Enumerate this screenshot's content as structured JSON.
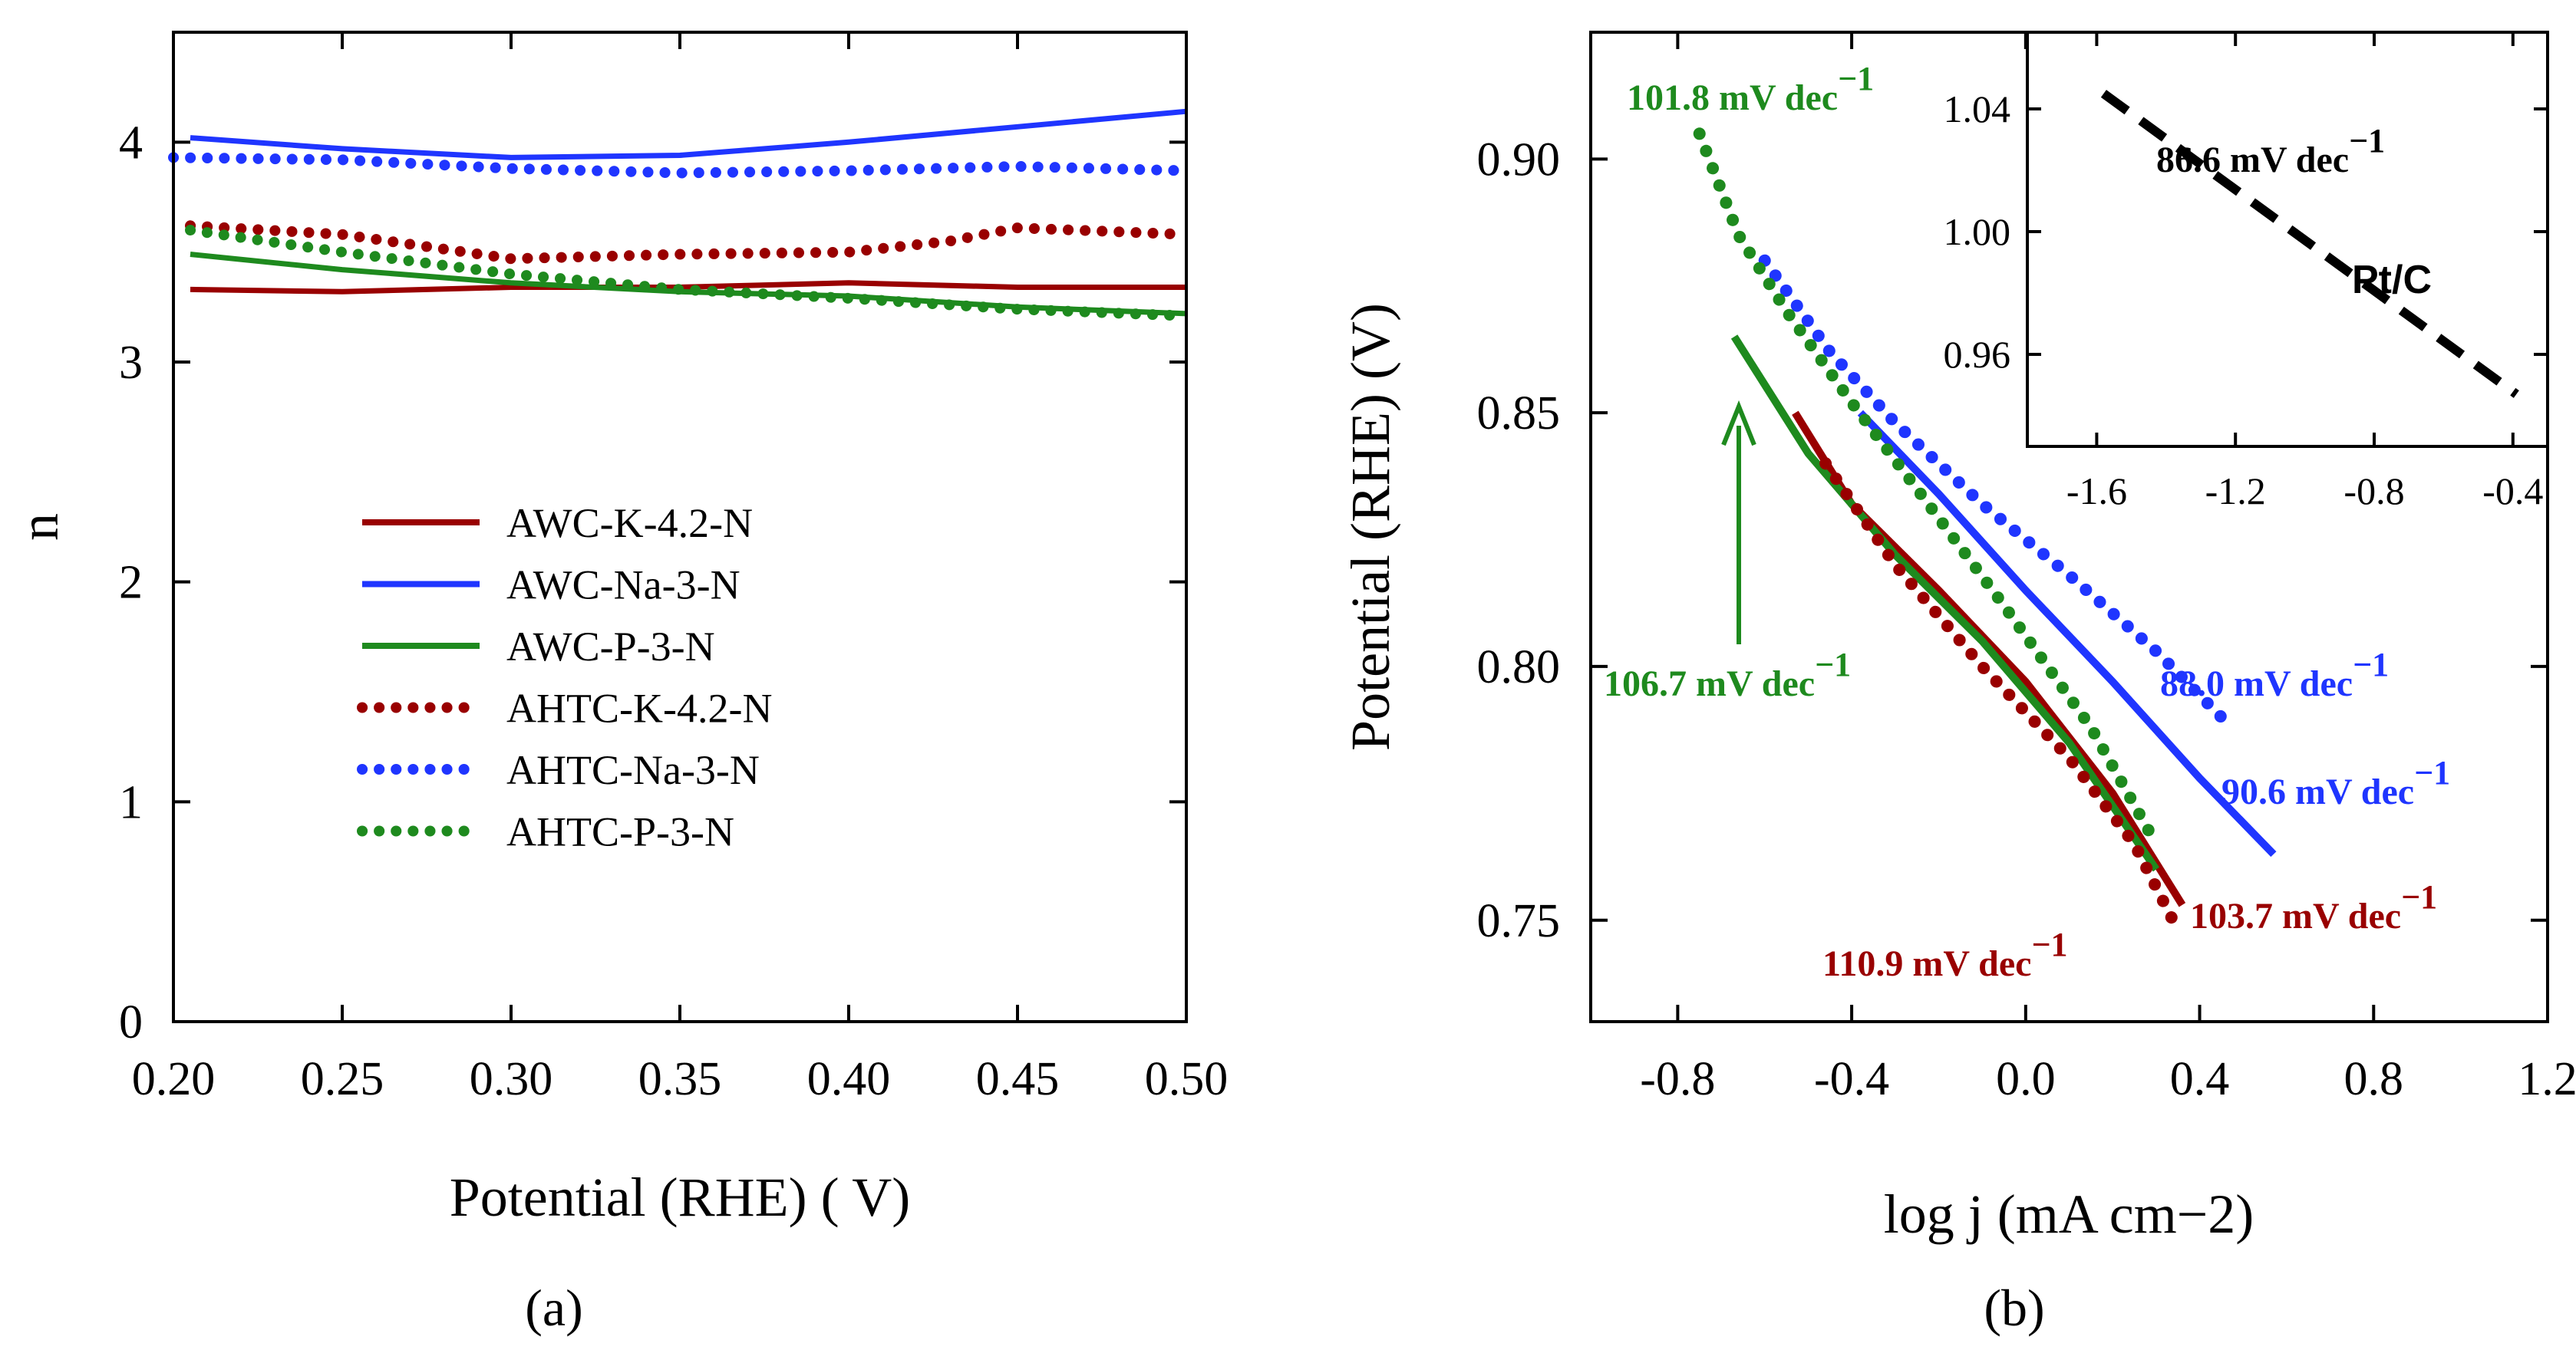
{
  "chart_data": [
    {
      "panel": "a",
      "type": "line",
      "caption": "(a)",
      "xlabel": "Potential  (RHE) ( V)",
      "ylabel": "n",
      "xlim": [
        0.2,
        0.5
      ],
      "ylim": [
        0,
        4.5
      ],
      "xticks": [
        "0.20",
        "0.25",
        "0.30",
        "0.35",
        "0.40",
        "0.45",
        "0.50"
      ],
      "yticks": [
        "0",
        "1",
        "2",
        "3",
        "4"
      ],
      "legend_position": "center",
      "series": [
        {
          "name": "AWC-K-4.2-N",
          "style": "solid",
          "color": "#990000",
          "x": [
            0.205,
            0.25,
            0.3,
            0.35,
            0.4,
            0.45,
            0.5
          ],
          "y": [
            3.33,
            3.32,
            3.34,
            3.34,
            3.36,
            3.34,
            3.34
          ]
        },
        {
          "name": "AWC-Na-3-N",
          "style": "solid",
          "color": "#1f35ff",
          "x": [
            0.205,
            0.25,
            0.3,
            0.35,
            0.4,
            0.45,
            0.5
          ],
          "y": [
            4.02,
            3.97,
            3.93,
            3.94,
            4.0,
            4.07,
            4.14
          ]
        },
        {
          "name": "AWC-P-3-N",
          "style": "solid",
          "color": "#1e8a1e",
          "x": [
            0.205,
            0.25,
            0.3,
            0.35,
            0.4,
            0.45,
            0.5
          ],
          "y": [
            3.49,
            3.42,
            3.36,
            3.32,
            3.3,
            3.25,
            3.22
          ]
        },
        {
          "name": "AHTC-K-4.2-N",
          "style": "dotted",
          "color": "#990000",
          "x": [
            0.205,
            0.25,
            0.3,
            0.35,
            0.4,
            0.43,
            0.45,
            0.5
          ],
          "y": [
            3.62,
            3.58,
            3.47,
            3.49,
            3.5,
            3.55,
            3.61,
            3.58
          ]
        },
        {
          "name": "AHTC-Na-3-N",
          "style": "dotted",
          "color": "#1f35ff",
          "x": [
            0.2,
            0.25,
            0.3,
            0.35,
            0.4,
            0.45,
            0.5
          ],
          "y": [
            3.93,
            3.92,
            3.88,
            3.86,
            3.87,
            3.89,
            3.87
          ]
        },
        {
          "name": "AHTC-P-3-N",
          "style": "dotted",
          "color": "#1e8a1e",
          "x": [
            0.205,
            0.25,
            0.3,
            0.35,
            0.4,
            0.45,
            0.5
          ],
          "y": [
            3.6,
            3.5,
            3.4,
            3.33,
            3.29,
            3.24,
            3.21
          ]
        }
      ]
    },
    {
      "panel": "b",
      "type": "line",
      "caption": "(b)",
      "xlabel": "log j (mA cm−2)",
      "ylabel": "Potential  (RHE) (V)",
      "xlim": [
        -1.0,
        1.2
      ],
      "ylim": [
        0.73,
        0.925
      ],
      "xticks": [
        "-0.8",
        "-0.4",
        "0.0",
        "0.4",
        "0.8",
        "1.2"
      ],
      "yticks": [
        "0.75",
        "0.80",
        "0.85",
        "0.90"
      ],
      "series": [
        {
          "name": "AWC-K-4.2-N",
          "style": "solid",
          "color": "#990000",
          "x": [
            -0.53,
            -0.4,
            -0.2,
            0.0,
            0.2,
            0.36
          ],
          "y": [
            0.85,
            0.832,
            0.815,
            0.797,
            0.775,
            0.753
          ]
        },
        {
          "name": "AWC-Na-3-N",
          "style": "solid",
          "color": "#1f35ff",
          "x": [
            -0.38,
            -0.2,
            0.0,
            0.2,
            0.4,
            0.57
          ],
          "y": [
            0.85,
            0.834,
            0.815,
            0.797,
            0.778,
            0.763
          ]
        },
        {
          "name": "AWC-P-3-N",
          "style": "solid",
          "color": "#1e8a1e",
          "x": [
            -0.67,
            -0.5,
            -0.3,
            -0.1,
            0.1,
            0.3
          ],
          "y": [
            0.865,
            0.842,
            0.822,
            0.805,
            0.785,
            0.76
          ]
        },
        {
          "name": "AHTC-K-4.2-N",
          "style": "dotted",
          "color": "#990000",
          "x": [
            -0.46,
            -0.3,
            -0.1,
            0.1,
            0.25,
            0.35
          ],
          "y": [
            0.84,
            0.82,
            0.8,
            0.782,
            0.765,
            0.748
          ]
        },
        {
          "name": "AHTC-Na-3-N",
          "style": "dotted",
          "color": "#1f35ff",
          "x": [
            -0.6,
            -0.45,
            -0.3,
            -0.1,
            0.1,
            0.3,
            0.45
          ],
          "y": [
            0.88,
            0.862,
            0.848,
            0.832,
            0.818,
            0.803,
            0.79
          ]
        },
        {
          "name": "AHTC-P-3-N",
          "style": "dotted",
          "color": "#1e8a1e",
          "x": [
            -0.75,
            -0.66,
            -0.55,
            -0.4,
            -0.25,
            -0.05,
            0.15,
            0.3
          ],
          "y": [
            0.905,
            0.885,
            0.87,
            0.852,
            0.835,
            0.812,
            0.788,
            0.765
          ]
        }
      ],
      "annotations": [
        {
          "text": "101.8 mV dec",
          "sup": "−1",
          "color": "#1e8a1e"
        },
        {
          "text": "106.7 mV dec",
          "sup": "−1",
          "color": "#1e8a1e"
        },
        {
          "text": "88.0 mV dec",
          "sup": "−1",
          "color": "#1f35ff"
        },
        {
          "text": "90.6 mV dec",
          "sup": "−1",
          "color": "#1f35ff"
        },
        {
          "text": "103.7 mV dec",
          "sup": "−1",
          "color": "#990000"
        },
        {
          "text": "110.9 mV dec",
          "sup": "−1",
          "color": "#990000"
        }
      ],
      "inset": {
        "type": "line",
        "xlim": [
          -1.8,
          -0.3
        ],
        "ylim": [
          0.93,
          1.065
        ],
        "xticks": [
          "-1.6",
          "-1.2",
          "-0.8",
          "-0.4"
        ],
        "yticks": [
          "0.96",
          "1.00",
          "1.04"
        ],
        "label": "Pt/C",
        "slope_text": "86.6 mV dec",
        "slope_sup": "−1",
        "series": [
          {
            "name": "Pt/C",
            "style": "dashed",
            "color": "#000000",
            "x": [
              -1.58,
              -0.39
            ],
            "y": [
              1.045,
              0.947
            ]
          }
        ]
      }
    }
  ]
}
